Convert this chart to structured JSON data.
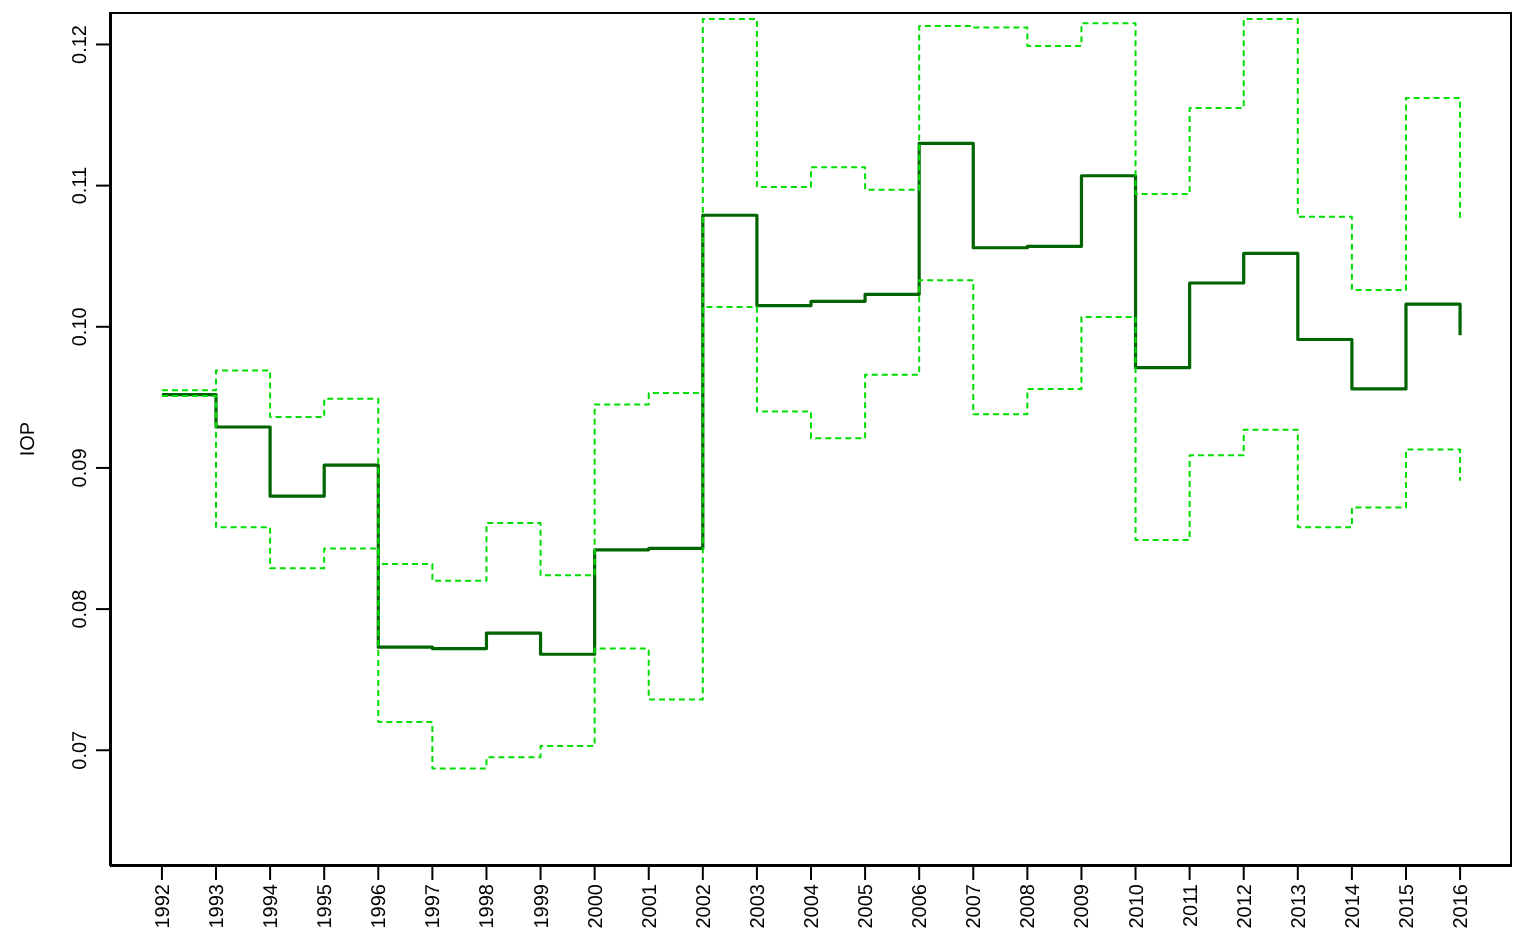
{
  "chart_data": {
    "type": "step",
    "ylabel": "IOP",
    "x": [
      1992,
      1993,
      1994,
      1995,
      1996,
      1997,
      1998,
      1999,
      2000,
      2001,
      2002,
      2003,
      2004,
      2005,
      2006,
      2007,
      2008,
      2009,
      2010,
      2011,
      2012,
      2013,
      2014,
      2015,
      2016
    ],
    "series": [
      {
        "color": "#006400",
        "line_style": "solid",
        "values": [
          0.0952,
          0.0929,
          0.088,
          0.0902,
          0.0773,
          0.0772,
          0.0783,
          0.0768,
          0.0842,
          0.0843,
          0.1079,
          0.1015,
          0.1018,
          0.1023,
          0.113,
          0.1056,
          0.1057,
          0.1107,
          0.0971,
          0.1031,
          0.1052,
          0.0991,
          0.0956,
          0.1016,
          0.0994
        ]
      },
      {
        "color": "#00dd00",
        "line_style": "dashed",
        "values": [
          0.0955,
          0.0969,
          0.0936,
          0.0949,
          0.0832,
          0.082,
          0.0861,
          0.0824,
          0.0945,
          0.0953,
          0.1218,
          0.1099,
          0.1113,
          0.1097,
          0.1213,
          0.1212,
          0.1199,
          0.1215,
          0.1094,
          0.1155,
          0.1218,
          0.1078,
          0.1026,
          0.1162,
          0.1077
        ]
      },
      {
        "color": "#00dd00",
        "line_style": "dashed",
        "values": [
          0.0951,
          0.0858,
          0.0829,
          0.0843,
          0.072,
          0.0687,
          0.0695,
          0.0703,
          0.0772,
          0.0736,
          0.1014,
          0.094,
          0.0921,
          0.0966,
          0.1033,
          0.0938,
          0.0956,
          0.1007,
          0.0849,
          0.0909,
          0.0927,
          0.0858,
          0.0872,
          0.0913,
          0.0891
        ]
      }
    ],
    "xlim": [
      1991.04,
      2016.96
    ],
    "xticks": [
      1992,
      1993,
      1994,
      1995,
      1996,
      1997,
      1998,
      1999,
      2000,
      2001,
      2002,
      2003,
      2004,
      2005,
      2006,
      2007,
      2008,
      2009,
      2010,
      2011,
      2012,
      2013,
      2014,
      2015,
      2016
    ],
    "ylim": [
      0.0618,
      0.1223
    ],
    "yticks": [
      0.07,
      0.08,
      0.09,
      {
        "value": 0.1,
        "label": "0.10"
      },
      0.11,
      0.12
    ]
  }
}
